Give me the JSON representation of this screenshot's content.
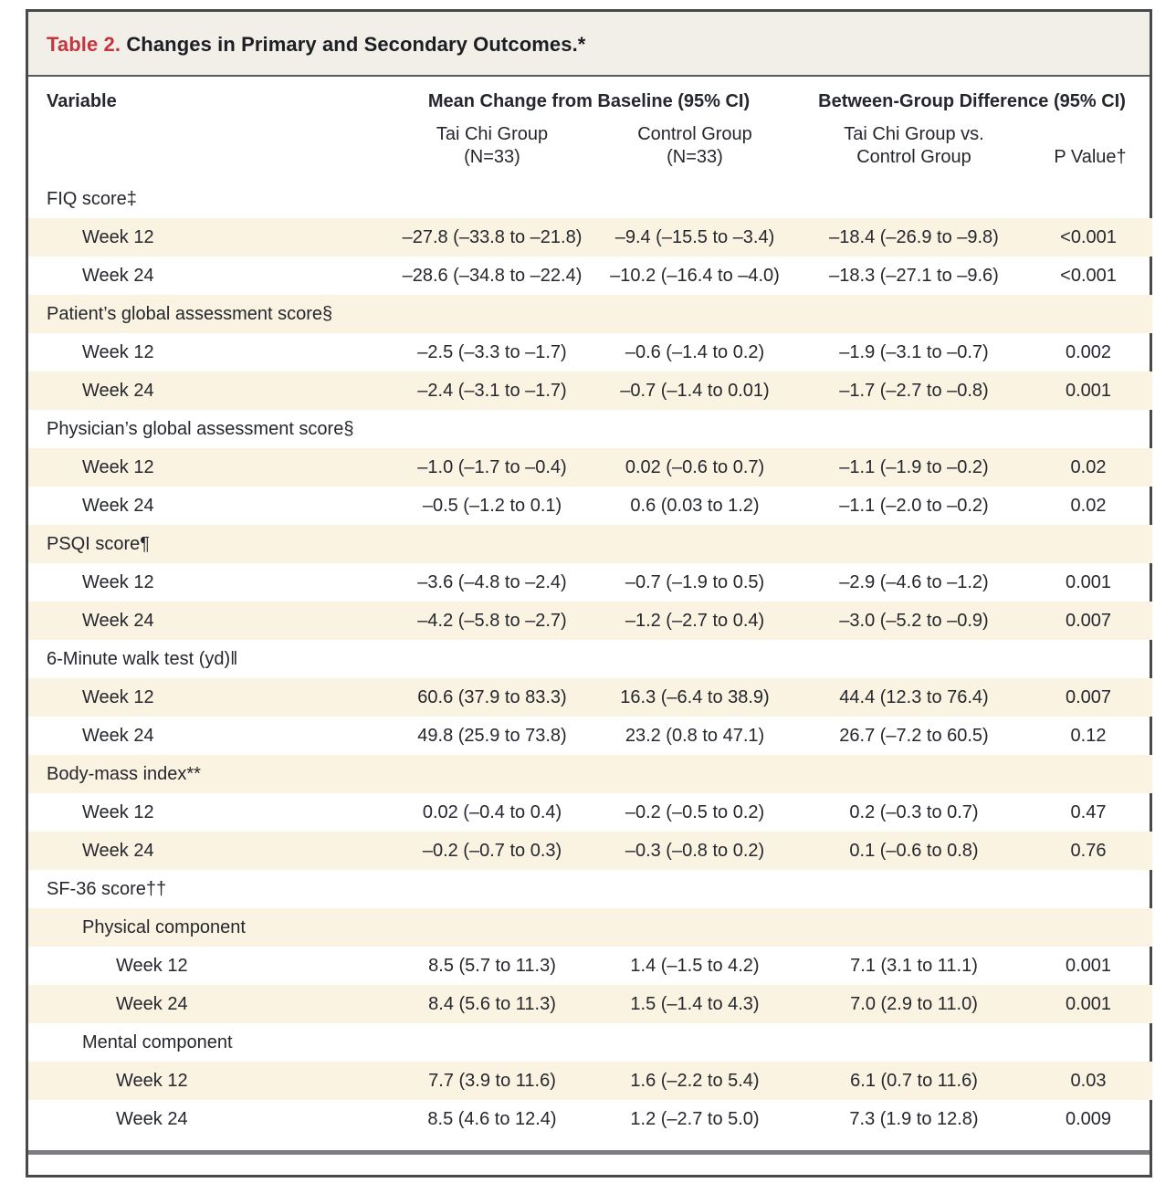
{
  "title": {
    "label": "Table 2.",
    "text": "Changes in Primary and Secondary Outcomes.*"
  },
  "colors": {
    "title_red": "#c13640",
    "band_cream": "#faf3e2",
    "frame_border": "#48494b",
    "title_band_bg": "#f2efe8",
    "bottom_bar_gray": "#7d7e81",
    "text_ink": "#25272e"
  },
  "table": {
    "header": {
      "variable": "Variable",
      "group_mean_change": "Mean Change from Baseline (95% CI)",
      "group_between": "Between-Group Difference (95% CI)",
      "sub_taichi": "Tai Chi Group\n(N=33)",
      "sub_control": "Control Group\n(N=33)",
      "sub_diff": "Tai Chi Group vs.\nControl Group",
      "sub_pvalue": "P Value†"
    },
    "rows": [
      {
        "label": "FIQ score‡",
        "indent": 0
      },
      {
        "label": "Week 12",
        "indent": 1,
        "values": [
          "–27.8 (–33.8 to –21.8)",
          "–9.4 (–15.5 to –3.4)",
          "–18.4 (–26.9 to –9.8)",
          "<0.001"
        ]
      },
      {
        "label": "Week 24",
        "indent": 1,
        "values": [
          "–28.6 (–34.8 to –22.4)",
          "–10.2 (–16.4 to –4.0)",
          "–18.3 (–27.1 to –9.6)",
          "<0.001"
        ]
      },
      {
        "label": "Patient’s global assessment score§",
        "indent": 0
      },
      {
        "label": "Week 12",
        "indent": 1,
        "values": [
          "–2.5 (–3.3 to –1.7)",
          "–0.6 (–1.4 to 0.2)",
          "–1.9 (–3.1 to –0.7)",
          "0.002"
        ]
      },
      {
        "label": "Week 24",
        "indent": 1,
        "values": [
          "–2.4 (–3.1 to –1.7)",
          "–0.7 (–1.4 to 0.01)",
          "–1.7 (–2.7 to –0.8)",
          "0.001"
        ]
      },
      {
        "label": "Physician’s global assessment score§",
        "indent": 0
      },
      {
        "label": "Week 12",
        "indent": 1,
        "values": [
          "–1.0 (–1.7 to –0.4)",
          "0.02 (–0.6 to 0.7)",
          "–1.1 (–1.9 to –0.2)",
          "0.02"
        ]
      },
      {
        "label": "Week 24",
        "indent": 1,
        "values": [
          "–0.5 (–1.2 to 0.1)",
          "0.6 (0.03 to 1.2)",
          "–1.1 (–2.0 to –0.2)",
          "0.02"
        ]
      },
      {
        "label": "PSQI score¶",
        "indent": 0
      },
      {
        "label": "Week 12",
        "indent": 1,
        "values": [
          "–3.6 (–4.8 to –2.4)",
          "–0.7 (–1.9 to 0.5)",
          "–2.9 (–4.6 to –1.2)",
          "0.001"
        ]
      },
      {
        "label": "Week 24",
        "indent": 1,
        "values": [
          "–4.2 (–5.8 to –2.7)",
          "–1.2 (–2.7 to 0.4)",
          "–3.0 (–5.2 to –0.9)",
          "0.007"
        ]
      },
      {
        "label": "6-Minute walk test (yd)‖",
        "indent": 0
      },
      {
        "label": "Week 12",
        "indent": 1,
        "values": [
          "60.6 (37.9 to 83.3)",
          "16.3 (–6.4 to 38.9)",
          "44.4 (12.3 to 76.4)",
          "0.007"
        ]
      },
      {
        "label": "Week 24",
        "indent": 1,
        "values": [
          "49.8 (25.9 to 73.8)",
          "23.2 (0.8 to 47.1)",
          "26.7 (–7.2 to 60.5)",
          "0.12"
        ]
      },
      {
        "label": "Body-mass index**",
        "indent": 0
      },
      {
        "label": "Week 12",
        "indent": 1,
        "values": [
          "0.02 (–0.4 to 0.4)",
          "–0.2 (–0.5 to 0.2)",
          "0.2 (–0.3 to 0.7)",
          "0.47"
        ]
      },
      {
        "label": "Week 24",
        "indent": 1,
        "values": [
          "–0.2 (–0.7 to 0.3)",
          "–0.3 (–0.8 to 0.2)",
          "0.1 (–0.6 to 0.8)",
          "0.76"
        ]
      },
      {
        "label": "SF-36 score††",
        "indent": 0
      },
      {
        "label": "Physical component",
        "indent": 1
      },
      {
        "label": "Week 12",
        "indent": 2,
        "values": [
          "8.5 (5.7 to 11.3)",
          "1.4 (–1.5 to 4.2)",
          "7.1 (3.1 to 11.1)",
          "0.001"
        ]
      },
      {
        "label": "Week 24",
        "indent": 2,
        "values": [
          "8.4 (5.6 to 11.3)",
          "1.5 (–1.4 to 4.3)",
          "7.0 (2.9 to 11.0)",
          "0.001"
        ]
      },
      {
        "label": "Mental component",
        "indent": 1
      },
      {
        "label": "Week 12",
        "indent": 2,
        "values": [
          "7.7 (3.9 to 11.6)",
          "1.6 (–2.2 to 5.4)",
          "6.1 (0.7 to 11.6)",
          "0.03"
        ]
      },
      {
        "label": "Week 24",
        "indent": 2,
        "values": [
          "8.5 (4.6 to 12.4)",
          "1.2 (–2.7 to 5.0)",
          "7.3 (1.9 to 12.8)",
          "0.009"
        ]
      }
    ]
  }
}
